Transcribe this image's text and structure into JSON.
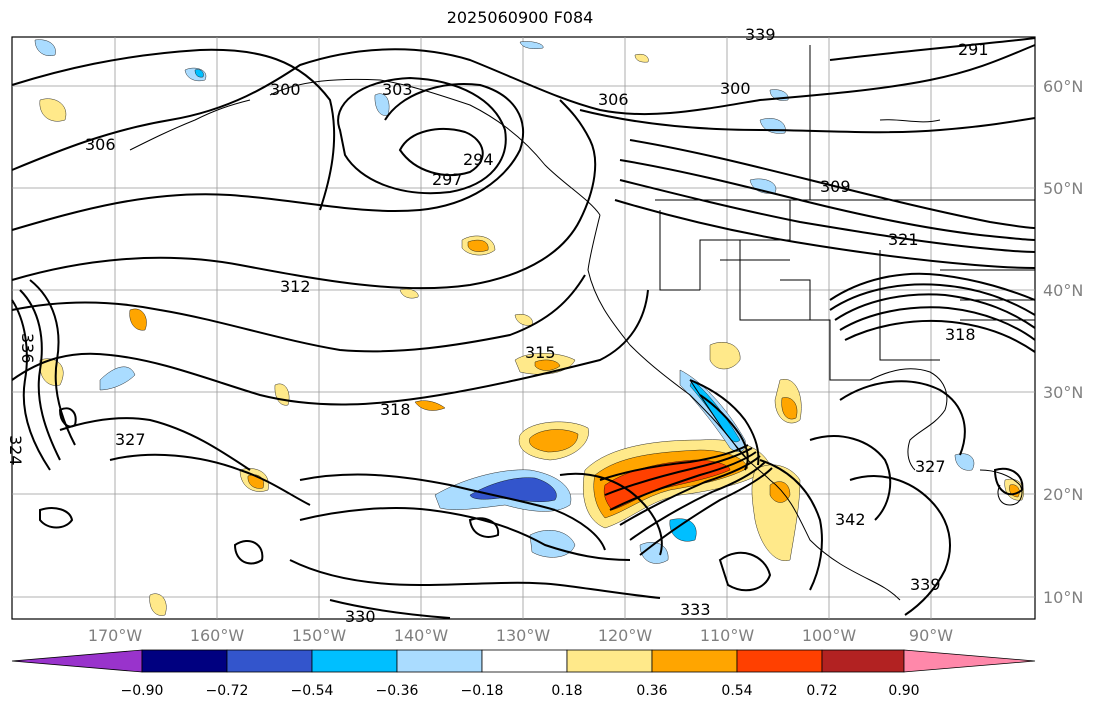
{
  "title": "2025060900 F084",
  "longitudes": [
    "170°W",
    "160°W",
    "150°W",
    "140°W",
    "130°W",
    "120°W",
    "110°W",
    "100°W",
    "90°W"
  ],
  "latitudes": [
    "60°N",
    "50°N",
    "40°N",
    "30°N",
    "20°N",
    "10°N"
  ],
  "contour_labels": [
    "300",
    "303",
    "306",
    "306",
    "300",
    "297",
    "294",
    "291",
    "309",
    "312",
    "315",
    "318",
    "318",
    "321",
    "324",
    "327",
    "327",
    "330",
    "333",
    "336",
    "339",
    "342",
    "339"
  ],
  "colorbar": {
    "ticks": [
      "−0.90",
      "−0.72",
      "−0.54",
      "−0.36",
      "−0.18",
      "0.18",
      "0.36",
      "0.54",
      "0.72",
      "0.90"
    ],
    "colors": [
      "#9933cc",
      "#000080",
      "#3355cc",
      "#00bfff",
      "#aadcff",
      "#ffffff",
      "#ffe98a",
      "#ffa500",
      "#ff4000",
      "#b22222",
      "#ff88aa"
    ]
  },
  "shading_colors": {
    "neg_light": "#aadcff",
    "neg_mid": "#00bfff",
    "neg_dark": "#3355cc",
    "pos_light": "#ffe98a",
    "pos_mid": "#ffa500",
    "pos_dark": "#ff4000"
  }
}
